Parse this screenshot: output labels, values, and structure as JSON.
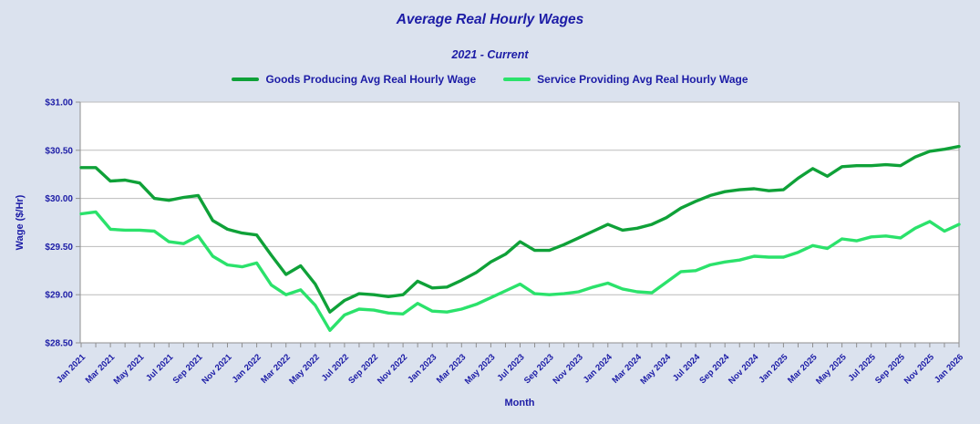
{
  "colors": {
    "background": "#dbe2ee",
    "plot_bg": "#ffffff",
    "grid": "#bcbcbc",
    "axis": "#8f8f8f",
    "text": "#1c1ca6",
    "goods_green": "#0fa138",
    "service_green": "#2be26b"
  },
  "chart_data": {
    "type": "line",
    "title": "Average Real Hourly Wages",
    "subtitle": "2021 - Current",
    "xlabel": "Month",
    "ylabel": "Wage ($/Hr)",
    "ylim": [
      28.5,
      31.0
    ],
    "y_tick_step": 0.5,
    "y_tick_labels": [
      "$28.50",
      "$29.00",
      "$29.50",
      "$30.00",
      "$30.50",
      "$31.00"
    ],
    "x_label_every": 2,
    "grid": "horizontal",
    "legend_position": "top",
    "x": [
      "Jan 2021",
      "Feb 2021",
      "Mar 2021",
      "Apr 2021",
      "May 2021",
      "Jun 2021",
      "Jul 2021",
      "Aug 2021",
      "Sep 2021",
      "Oct 2021",
      "Nov 2021",
      "Dec 2021",
      "Jan 2022",
      "Feb 2022",
      "Mar 2022",
      "Apr 2022",
      "May 2022",
      "Jun 2022",
      "Jul 2022",
      "Aug 2022",
      "Sep 2022",
      "Oct 2022",
      "Nov 2022",
      "Dec 2022",
      "Jan 2023",
      "Feb 2023",
      "Mar 2023",
      "Apr 2023",
      "May 2023",
      "Jun 2023",
      "Jul 2023",
      "Aug 2023",
      "Sep 2023",
      "Oct 2023",
      "Nov 2023",
      "Dec 2023",
      "Jan 2024",
      "Feb 2024",
      "Mar 2024",
      "Apr 2024",
      "May 2024",
      "Jun 2024",
      "Jul 2024",
      "Aug 2024",
      "Sep 2024",
      "Oct 2024",
      "Nov 2024",
      "Dec 2024",
      "Jan 2025",
      "Feb 2025",
      "Mar 2025",
      "Apr 2025",
      "May 2025",
      "Jun 2025",
      "Jul 2025",
      "Aug 2025",
      "Sep 2025",
      "Oct 2025",
      "Nov 2025",
      "Dec 2025",
      "Jan 2026"
    ],
    "series": [
      {
        "name": "Goods Producing Avg Real Hourly Wage",
        "color": "#0fa138",
        "values": [
          30.32,
          30.32,
          30.18,
          30.19,
          30.16,
          30.0,
          29.98,
          30.01,
          30.03,
          29.77,
          29.68,
          29.64,
          29.62,
          29.41,
          29.21,
          29.3,
          29.11,
          28.82,
          28.94,
          29.01,
          29.0,
          28.98,
          29.0,
          29.14,
          29.07,
          29.08,
          29.15,
          29.23,
          29.34,
          29.42,
          29.55,
          29.46,
          29.46,
          29.52,
          29.59,
          29.66,
          29.73,
          29.67,
          29.69,
          29.73,
          29.8,
          29.9,
          29.97,
          30.03,
          30.07,
          30.09,
          30.1,
          30.08,
          30.09,
          30.21,
          30.31,
          30.23,
          30.33,
          30.34,
          30.34,
          30.35,
          30.34,
          30.43,
          30.49,
          30.51,
          30.54
        ]
      },
      {
        "name": "Service Providing Avg Real Hourly Wage",
        "color": "#2be26b",
        "values": [
          29.84,
          29.86,
          29.68,
          29.67,
          29.67,
          29.66,
          29.55,
          29.53,
          29.61,
          29.4,
          29.31,
          29.29,
          29.33,
          29.1,
          29.0,
          29.05,
          28.89,
          28.63,
          28.79,
          28.85,
          28.84,
          28.81,
          28.8,
          28.91,
          28.83,
          28.82,
          28.85,
          28.9,
          28.97,
          29.04,
          29.11,
          29.01,
          29.0,
          29.01,
          29.03,
          29.08,
          29.12,
          29.06,
          29.03,
          29.02,
          29.13,
          29.24,
          29.25,
          29.31,
          29.34,
          29.36,
          29.4,
          29.39,
          29.39,
          29.44,
          29.51,
          29.48,
          29.58,
          29.56,
          29.6,
          29.61,
          29.59,
          29.69,
          29.76,
          29.66,
          29.73
        ]
      }
    ]
  }
}
